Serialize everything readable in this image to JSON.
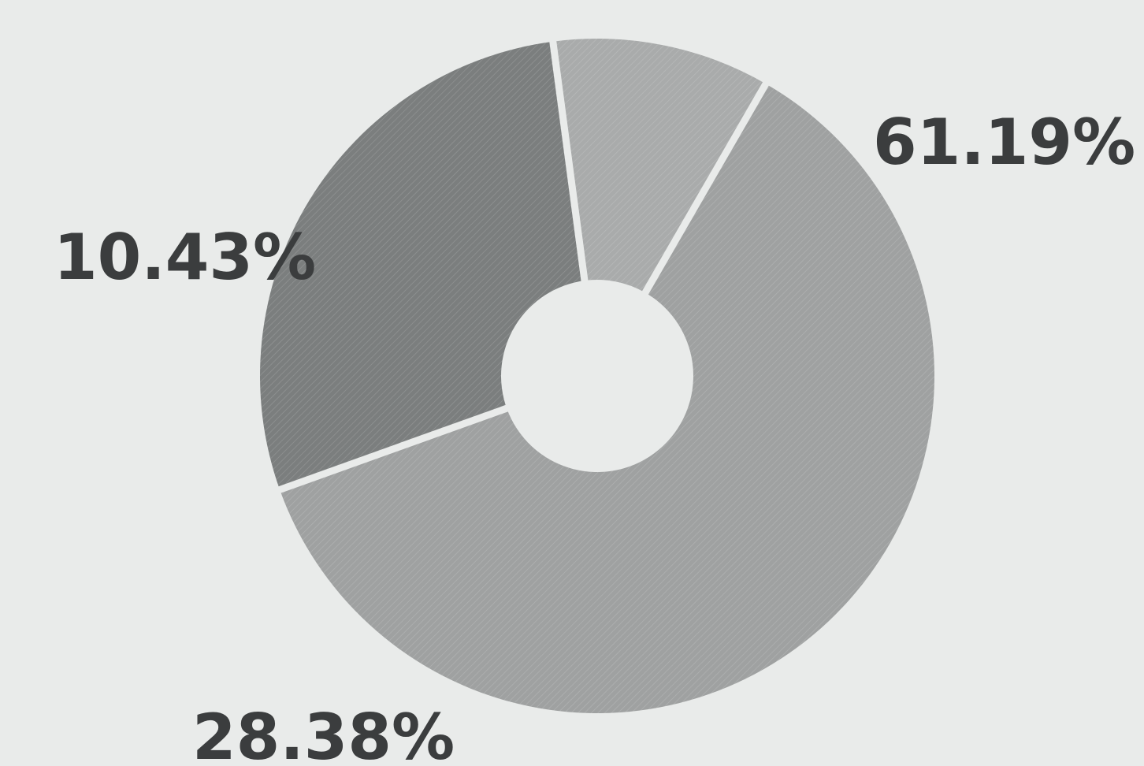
{
  "chart_data": {
    "type": "pie",
    "donut": true,
    "slices": [
      {
        "label": "61.19%",
        "value": 61.19,
        "color": "#9fa1a1"
      },
      {
        "label": "28.38%",
        "value": 28.38,
        "color": "#7b7e7e"
      },
      {
        "label": "10.43%",
        "value": 10.43,
        "color": "#a9abab"
      }
    ],
    "start_angle_deg": 300,
    "direction": "clockwise",
    "legend": "none"
  },
  "colors": {
    "background": "#e9ebea",
    "separator": "#e9ebea",
    "label_text": "#3b3d3e"
  }
}
